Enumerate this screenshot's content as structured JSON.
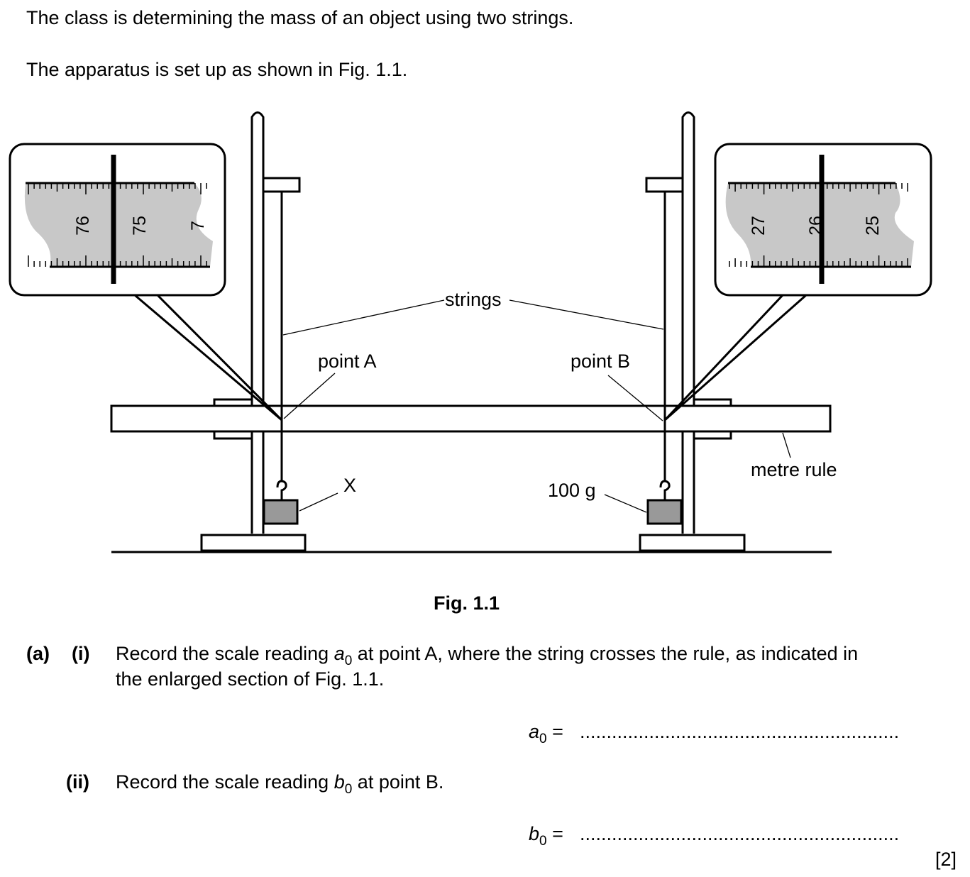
{
  "intro": {
    "line1": "The class is determining the mass of an object using two strings.",
    "line2": "The apparatus is set up as shown in Fig. 1.1."
  },
  "figure": {
    "caption": "Fig. 1.1",
    "labels": {
      "strings": "strings",
      "point_a": "point A",
      "point_b": "point B",
      "metre_rule": "metre rule",
      "x": "X",
      "mass_100g": "100 g"
    },
    "left_inset_scale": [
      "76",
      "75",
      "7"
    ],
    "right_inset_scale": [
      "27",
      "26",
      "25"
    ]
  },
  "question": {
    "part_a": "(a)",
    "part_i": "(i)",
    "i_text_1": "Record the scale reading ",
    "i_var": "a",
    "i_sub": "0",
    "i_text_2": " at point A, where the string crosses the rule, as indicated in",
    "i_text_3": "the enlarged section of Fig. 1.1.",
    "a0_var": "a",
    "a0_sub": "0",
    "a0_eq": " =",
    "part_ii": "(ii)",
    "ii_text_1": "Record the scale reading ",
    "ii_var": "b",
    "ii_sub": "0",
    "ii_text_2": " at point B.",
    "b0_var": "b",
    "b0_sub": "0",
    "b0_eq": " =",
    "answer_dots": "............................................................",
    "marks": "[2]"
  }
}
